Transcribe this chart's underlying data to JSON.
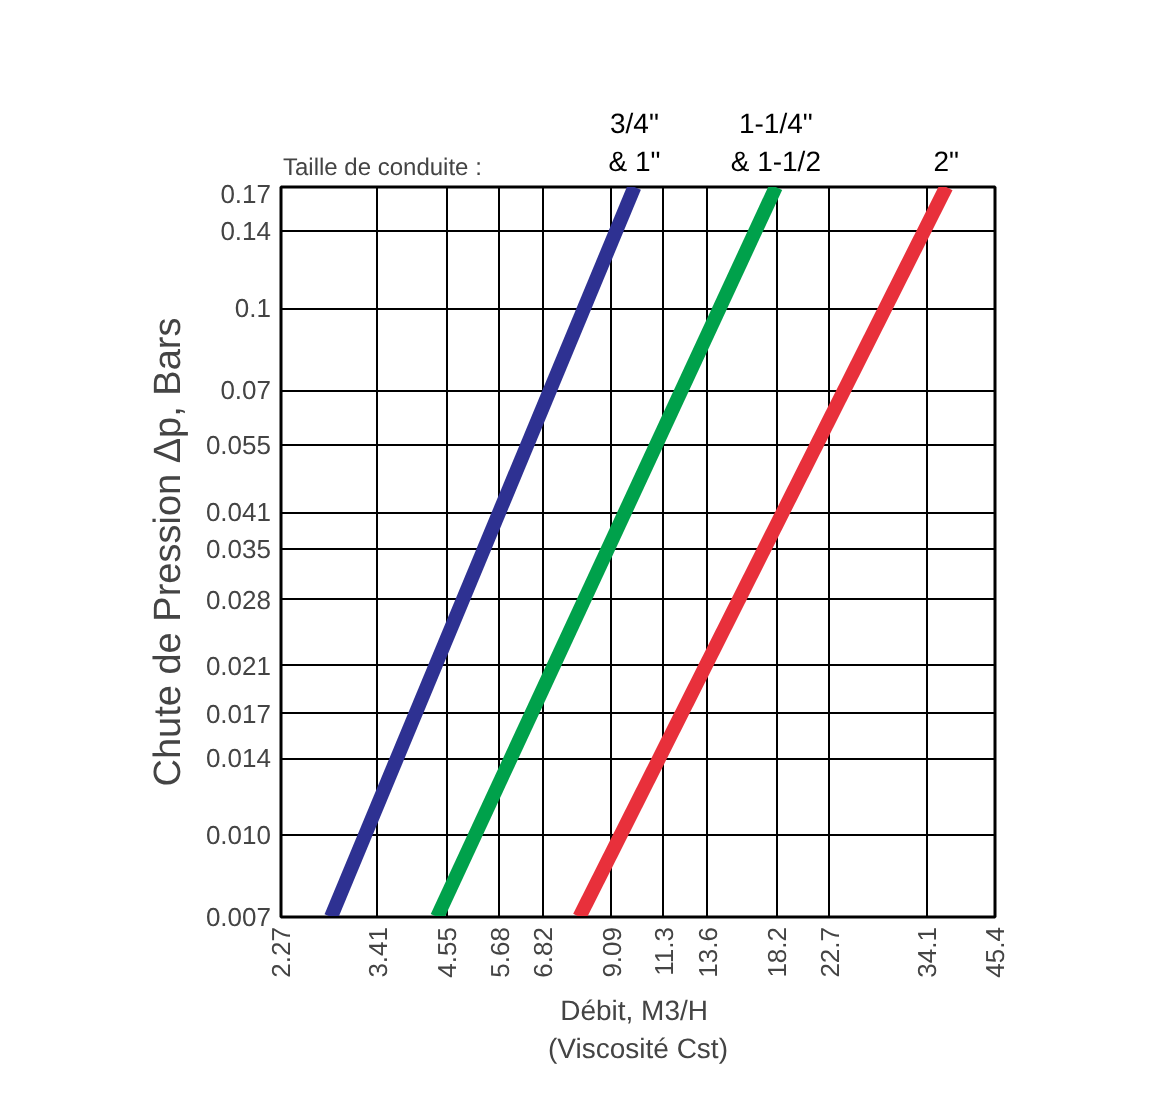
{
  "chart_data": {
    "type": "line",
    "xlabel": "Débit,  M3/H\n(Viscosité Cst)",
    "ylabel": "Chute de Pression Δp, Bars",
    "log": "xy",
    "grid": true,
    "legend": false,
    "marker": "none",
    "line_style": "solid",
    "xlim": [
      2.27,
      45.4
    ],
    "ylim": [
      0.007,
      0.17
    ],
    "xticks": [
      2.27,
      3.41,
      4.55,
      5.68,
      6.82,
      9.09,
      11.3,
      13.6,
      18.2,
      22.7,
      34.1,
      45.4
    ],
    "yticks": [
      {
        "value": 0.007,
        "label": "0.007"
      },
      {
        "value": 0.01,
        "label": "0.010"
      },
      0.014,
      0.017,
      0.021,
      0.028,
      0.035,
      0.041,
      0.055,
      0.07,
      0.1,
      0.14,
      0.17
    ],
    "annotations": [
      "Taille de conduite :"
    ],
    "series": [
      {
        "name": "3/4\"\n& 1\"",
        "color": "#2e3192",
        "x": [
          2.8,
          10.0
        ],
        "values": [
          0.007,
          0.17
        ]
      },
      {
        "name": "1-1/4\"\n& 1-1/2",
        "color": "#00a14b",
        "x": [
          4.37,
          18.1
        ],
        "values": [
          0.007,
          0.17
        ]
      },
      {
        "name": "2\"",
        "color": "#e8303b",
        "x": [
          7.94,
          37.0
        ],
        "values": [
          0.007,
          0.17
        ]
      }
    ]
  }
}
